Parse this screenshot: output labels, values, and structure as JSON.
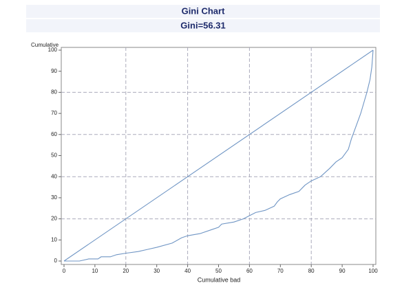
{
  "chart_data": {
    "type": "line",
    "title": "Gini Chart",
    "subtitle": "Gini=56.31",
    "xlabel": "Cumulative bad",
    "ylabel": "Cumulative",
    "xlim": [
      0,
      100
    ],
    "ylim": [
      0,
      100
    ],
    "xticks": [
      0,
      10,
      20,
      30,
      40,
      50,
      60,
      70,
      80,
      90,
      100
    ],
    "yticks": [
      0,
      10,
      20,
      30,
      40,
      50,
      60,
      70,
      80,
      90,
      100
    ],
    "xgrid": [
      20,
      40,
      60,
      80
    ],
    "ygrid": [
      20,
      40,
      60,
      80
    ],
    "series": [
      {
        "color": "#6f95c4",
        "x": [
          0,
          100
        ],
        "values": [
          0,
          100
        ]
      },
      {
        "color": "#6f95c4",
        "x": [
          0,
          5,
          8,
          11,
          12,
          15,
          17,
          20,
          24,
          27,
          30,
          35,
          38,
          40,
          44,
          48,
          50,
          51,
          55,
          58,
          60,
          62,
          65,
          68,
          69,
          70,
          73,
          76,
          78,
          80,
          83,
          86,
          88,
          90,
          91,
          92,
          93,
          94,
          95,
          96,
          97,
          98,
          99,
          99.6,
          100
        ],
        "values": [
          0,
          0,
          1,
          1,
          2,
          2,
          3,
          3.7,
          4.5,
          5.5,
          6.5,
          8.5,
          11,
          12,
          13,
          15,
          16,
          17.5,
          18.5,
          20,
          21.5,
          23,
          24,
          26,
          28,
          29.5,
          31.5,
          33,
          36,
          38,
          40,
          44,
          47,
          49,
          51,
          53,
          58,
          62,
          66,
          70,
          75,
          80,
          86,
          92,
          100
        ]
      }
    ]
  }
}
